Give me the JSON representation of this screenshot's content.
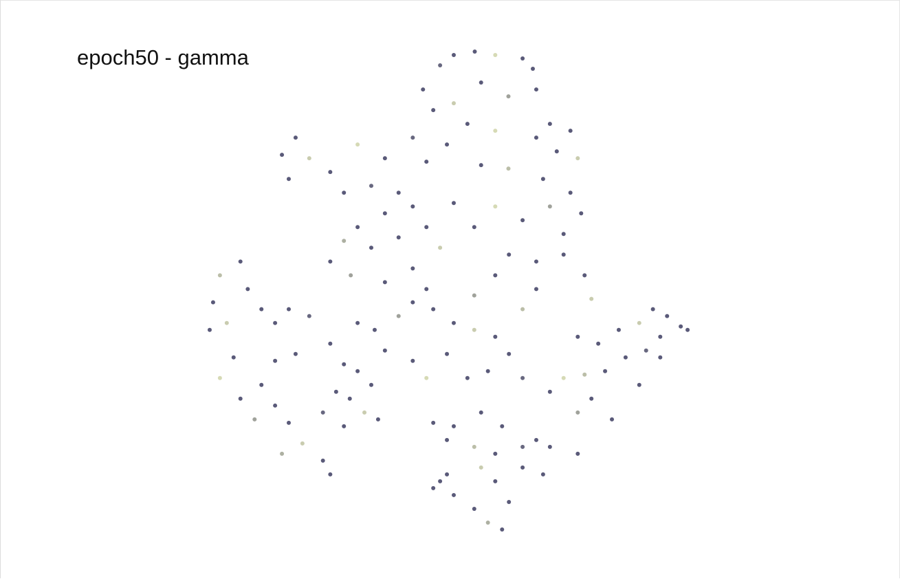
{
  "chart_data": {
    "type": "scatter",
    "title": "epoch50 - gamma",
    "xlim": [
      0,
      100
    ],
    "ylim": [
      0,
      100
    ],
    "cmap": [
      "#d9dfa0",
      "#141440"
    ],
    "clim": [
      0,
      1
    ],
    "opacity": 0.7,
    "x": [
      55.0,
      50.7,
      59.2,
      64.8,
      66.9,
      47.9,
      44.4,
      46.5,
      50.7,
      56.3,
      61.9,
      67.6,
      70.4,
      74.6,
      76.1,
      71.8,
      67.6,
      59.2,
      53.5,
      49.3,
      42.3,
      45.1,
      56.3,
      61.9,
      69.0,
      74.6,
      76.8,
      73.2,
      70.4,
      64.8,
      59.2,
      54.9,
      50.7,
      18.3,
      15.5,
      21.1,
      25.4,
      16.9,
      28.2,
      33.8,
      31.0,
      36.6,
      39.4,
      42.3,
      36.6,
      31.0,
      28.2,
      33.8,
      25.4,
      29.6,
      39.4,
      45.1,
      47.9,
      42.3,
      36.6,
      45.1,
      7.0,
      2.8,
      1.4,
      0.7,
      4.2,
      8.5,
      11.3,
      14.1,
      16.9,
      21.1,
      5.6,
      2.8,
      7.0,
      11.3,
      14.1,
      9.9,
      16.9,
      19.7,
      23.9,
      25.4,
      15.5,
      14.1,
      18.3,
      25.4,
      28.2,
      31.0,
      26.6,
      29.4,
      32.4,
      35.2,
      33.8,
      36.6,
      23.9,
      28.2,
      31.0,
      34.5,
      39.4,
      42.3,
      46.5,
      50.7,
      54.9,
      59.2,
      49.3,
      42.3,
      45.1,
      53.5,
      57.7,
      62.0,
      64.8,
      56.3,
      60.6,
      50.7,
      46.5,
      64.8,
      67.6,
      59.2,
      54.9,
      62.0,
      67.6,
      73.2,
      77.5,
      78.9,
      76.1,
      80.3,
      84.5,
      88.7,
      91.5,
      94.4,
      97.2,
      98.6,
      93.0,
      90.1,
      85.9,
      81.7,
      77.5,
      73.2,
      70.4,
      78.9,
      83.1,
      88.7,
      93.0,
      76.1,
      47.9,
      50.7,
      46.5,
      54.9,
      57.7,
      60.6,
      62.0,
      59.2,
      56.3,
      64.8,
      69.0,
      70.4,
      67.6,
      64.8,
      59.2,
      54.9,
      49.3,
      76.1,
      49.3
    ],
    "y": [
      98.6,
      97.9,
      97.9,
      97.2,
      95.1,
      95.8,
      90.9,
      86.7,
      88.1,
      92.3,
      89.5,
      90.9,
      83.9,
      82.5,
      76.9,
      78.3,
      81.1,
      82.5,
      83.9,
      79.7,
      81.1,
      76.2,
      75.5,
      74.8,
      72.7,
      69.9,
      65.7,
      61.5,
      67.1,
      64.3,
      67.1,
      62.9,
      67.8,
      81.1,
      77.6,
      76.9,
      74.1,
      72.7,
      69.9,
      71.3,
      79.7,
      76.9,
      69.9,
      67.1,
      65.7,
      62.9,
      60.1,
      58.7,
      55.9,
      53.1,
      60.8,
      62.9,
      58.7,
      54.5,
      51.7,
      50.3,
      55.9,
      53.1,
      47.6,
      42.0,
      43.4,
      50.3,
      46.2,
      43.4,
      46.2,
      44.8,
      36.4,
      32.2,
      28.0,
      30.8,
      26.6,
      23.8,
      23.1,
      18.9,
      15.4,
      12.6,
      16.8,
      35.7,
      37.1,
      39.2,
      35.0,
      33.6,
      29.4,
      28.0,
      25.2,
      23.8,
      30.8,
      37.8,
      25.2,
      22.4,
      43.4,
      42.0,
      44.8,
      47.6,
      46.2,
      43.4,
      42.0,
      40.6,
      37.1,
      35.7,
      32.2,
      32.2,
      33.6,
      37.1,
      32.2,
      25.2,
      22.4,
      22.4,
      23.1,
      46.2,
      50.3,
      53.1,
      49.0,
      57.3,
      55.9,
      57.3,
      53.1,
      48.3,
      40.6,
      39.2,
      42.0,
      43.4,
      46.2,
      44.8,
      42.7,
      42.0,
      40.6,
      37.8,
      36.4,
      33.6,
      32.9,
      32.2,
      29.4,
      28.0,
      23.8,
      30.8,
      36.4,
      25.2,
      11.2,
      8.4,
      9.8,
      5.6,
      2.8,
      1.4,
      7.0,
      11.2,
      14.0,
      14.0,
      12.6,
      18.2,
      19.6,
      18.2,
      16.8,
      18.2,
      19.6,
      16.8,
      12.6
    ],
    "c": [
      1,
      1,
      0.1,
      1,
      1,
      0.9,
      1,
      1,
      0.2,
      1,
      0.5,
      1,
      1,
      1,
      0.2,
      1,
      1,
      0.1,
      1,
      1,
      0.9,
      1,
      1,
      0.3,
      1,
      1,
      1,
      1,
      0.5,
      1,
      0.1,
      1,
      1,
      1,
      1,
      0.2,
      1,
      1,
      1,
      0.9,
      0.1,
      1,
      1,
      1,
      1,
      1,
      0.4,
      1,
      1,
      0.5,
      1,
      1,
      0.2,
      1,
      1,
      1,
      1,
      0.3,
      1,
      1,
      0.2,
      1,
      1,
      1,
      1,
      0.9,
      1,
      0.1,
      1,
      1,
      1,
      0.5,
      1,
      0.2,
      1,
      1,
      0.4,
      1,
      1,
      1,
      1,
      1,
      1,
      1,
      0.2,
      1,
      1,
      1,
      0.9,
      1,
      1,
      1,
      0.5,
      1,
      1,
      1,
      0.2,
      1,
      1,
      1,
      0.1,
      1,
      1,
      1,
      0.9,
      1,
      1,
      1,
      1,
      0.3,
      1,
      1,
      0.5,
      1,
      1,
      1,
      1,
      0.2,
      1,
      1,
      1,
      0.2,
      1,
      1,
      1,
      1,
      1,
      0.9,
      1,
      1,
      0.3,
      0.1,
      1,
      1,
      1,
      1,
      1,
      0.5,
      1,
      1,
      1,
      1,
      0.4,
      1,
      1,
      1,
      0.2,
      1,
      1,
      1,
      1,
      0.9,
      1,
      0.3,
      1,
      1,
      1
    ]
  }
}
